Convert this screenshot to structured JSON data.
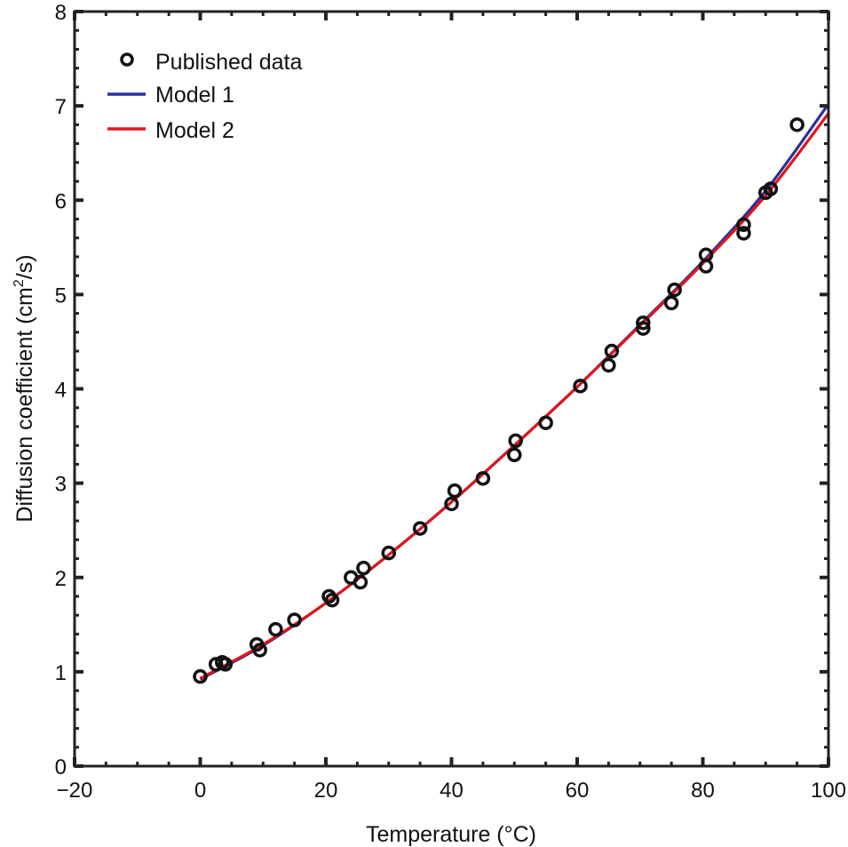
{
  "chart_data": {
    "type": "scatter",
    "title": "",
    "xlabel": "Temperature (°C)",
    "ylabel_main": "Diffusion coefficient (cm",
    "ylabel_sup": "2",
    "ylabel_tail": "/s)",
    "xlim": [
      -20,
      100
    ],
    "ylim": [
      0,
      8
    ],
    "x_ticks": [
      -20,
      0,
      20,
      40,
      60,
      80,
      100
    ],
    "x_tick_labels": [
      "−20",
      "0",
      "20",
      "40",
      "60",
      "80",
      "100"
    ],
    "y_ticks": [
      0,
      1,
      2,
      3,
      4,
      5,
      6,
      7,
      8
    ],
    "y_tick_labels": [
      "0",
      "1",
      "2",
      "3",
      "4",
      "5",
      "6",
      "7",
      "8"
    ],
    "grid": false,
    "legend_position": "upper left",
    "legend": [
      {
        "label": "Published data",
        "kind": "marker"
      },
      {
        "label": "Model 1",
        "kind": "line",
        "color": "#2b2f9a"
      },
      {
        "label": "Model 2",
        "kind": "line",
        "color": "#e0161b"
      }
    ],
    "series": [
      {
        "name": "Published data",
        "type": "scatter",
        "color": "#111111",
        "points": [
          [
            0,
            0.95
          ],
          [
            2.5,
            1.08
          ],
          [
            3.5,
            1.1
          ],
          [
            4,
            1.08
          ],
          [
            9,
            1.29
          ],
          [
            9.5,
            1.23
          ],
          [
            12,
            1.45
          ],
          [
            15,
            1.55
          ],
          [
            20.5,
            1.8
          ],
          [
            21,
            1.76
          ],
          [
            24,
            2.0
          ],
          [
            25.5,
            1.95
          ],
          [
            26,
            2.1
          ],
          [
            30,
            2.26
          ],
          [
            35,
            2.52
          ],
          [
            40,
            2.78
          ],
          [
            40.5,
            2.92
          ],
          [
            45,
            3.05
          ],
          [
            50,
            3.3
          ],
          [
            50.2,
            3.45
          ],
          [
            55,
            3.64
          ],
          [
            60.5,
            4.03
          ],
          [
            65,
            4.25
          ],
          [
            65.5,
            4.4
          ],
          [
            70.5,
            4.64
          ],
          [
            70.5,
            4.7
          ],
          [
            75,
            4.91
          ],
          [
            75.5,
            5.05
          ],
          [
            80.5,
            5.3
          ],
          [
            80.5,
            5.42
          ],
          [
            86.5,
            5.65
          ],
          [
            86.5,
            5.74
          ],
          [
            90,
            6.08
          ],
          [
            90.8,
            6.12
          ],
          [
            95,
            6.8
          ]
        ]
      },
      {
        "name": "Model 1",
        "type": "line",
        "color": "#2b2f9a",
        "x": [
          0,
          10,
          20,
          30,
          40,
          50,
          60,
          70,
          80,
          90,
          100
        ],
        "y": [
          0.92,
          1.28,
          1.73,
          2.24,
          2.8,
          3.4,
          4.02,
          4.68,
          5.35,
          6.1,
          7.02
        ]
      },
      {
        "name": "Model 2",
        "type": "line",
        "color": "#e0161b",
        "x": [
          0,
          10,
          20,
          30,
          40,
          50,
          60,
          70,
          80,
          90,
          100
        ],
        "y": [
          0.93,
          1.29,
          1.73,
          2.24,
          2.8,
          3.4,
          4.02,
          4.67,
          5.33,
          6.05,
          6.92
        ]
      }
    ]
  }
}
